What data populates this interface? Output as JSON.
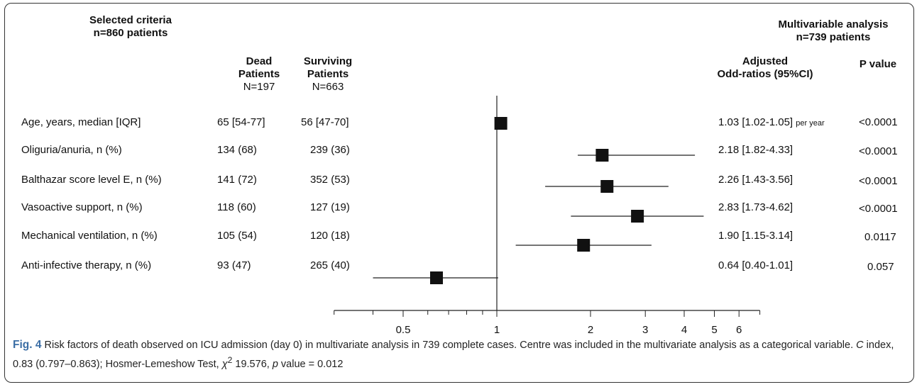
{
  "headers": {
    "selected_criteria": "Selected criteria",
    "selected_n": "n=860 patients",
    "dead_line1": "Dead",
    "dead_line2": "Patients",
    "dead_n": "N=197",
    "surv_line1": "Surviving",
    "surv_line2": "Patients",
    "surv_n": "N=663",
    "multi_line1": "Multivariable analysis",
    "multi_line2": "n=739 patients",
    "or_line1": "Adjusted",
    "or_line2": "Odd-ratios (95%CI)",
    "pvalue": "P value"
  },
  "rows": [
    {
      "label": "Age, years, median [IQR]",
      "dead": "65 [54-77]",
      "surv": "56 [47-70]",
      "or_text": "1.03 [1.02-1.05]",
      "or_suffix": "per year",
      "p": "<0.0001"
    },
    {
      "label": "Oliguria/anuria, n (%)",
      "dead": "134 (68)",
      "surv": "239 (36)",
      "or_text": "2.18 [1.82-4.33]",
      "or_suffix": "",
      "p": "<0.0001"
    },
    {
      "label": "Balthazar score level E, n (%)",
      "dead": "141 (72)",
      "surv": "352 (53)",
      "or_text": "2.26 [1.43-3.56]",
      "or_suffix": "",
      "p": "<0.0001"
    },
    {
      "label": "Vasoactive support, n (%)",
      "dead": "118 (60)",
      "surv": "127 (19)",
      "or_text": "2.83 [1.73-4.62]",
      "or_suffix": "",
      "p": "<0.0001"
    },
    {
      "label": "Mechanical ventilation, n (%)",
      "dead": "105 (54)",
      "surv": "120 (18)",
      "or_text": "1.90 [1.15-3.14]",
      "or_suffix": "",
      "p": "0.0117"
    },
    {
      "label": "Anti-infective therapy, n (%)",
      "dead": "93 (47)",
      "surv": "265 (40)",
      "or_text": "0.64 [0.40-1.01]",
      "or_suffix": "",
      "p": "0.057"
    }
  ],
  "chart_data": {
    "type": "forest",
    "xscale": "log",
    "xlim": [
      0.3,
      7
    ],
    "reference_line": 1,
    "x_ticks_minor": [
      0.3,
      0.4,
      0.5,
      0.6,
      0.7,
      0.8,
      0.9,
      1,
      2,
      3,
      4,
      5,
      6,
      7
    ],
    "x_tick_labels": [
      "0.5",
      "1",
      "2",
      "3",
      "4",
      "5",
      "6"
    ],
    "x_tick_label_values": [
      0.5,
      1,
      2,
      3,
      4,
      5,
      6
    ],
    "categories": [
      "Age, years, median [IQR]",
      "Oliguria/anuria, n (%)",
      "Balthazar score level E, n (%)",
      "Vasoactive support, n (%)",
      "Mechanical ventilation, n (%)",
      "Anti-infective therapy, n (%)"
    ],
    "estimates": [
      1.03,
      2.18,
      2.26,
      2.83,
      1.9,
      0.64
    ],
    "ci_lower": [
      1.02,
      1.82,
      1.43,
      1.73,
      1.15,
      0.4
    ],
    "ci_upper": [
      1.05,
      4.33,
      3.56,
      4.62,
      3.14,
      1.01
    ],
    "marker_color": "#111111"
  },
  "caption": {
    "fig_label": "Fig. 4",
    "text_a": " Risk factors of death observed on ICU admission (day 0) in multivariate analysis in 739 complete cases. Centre was included in the multivariate analysis as a categorical variable. ",
    "c_letter": "C",
    "text_b": " index, 0.83 (0.797–0.863); Hosmer-Lemeshow Test, ",
    "chi": "χ",
    "chi_sup": "2",
    "text_c": " 19.576, ",
    "p_letter": "p",
    "text_d": " value = 0.012"
  }
}
